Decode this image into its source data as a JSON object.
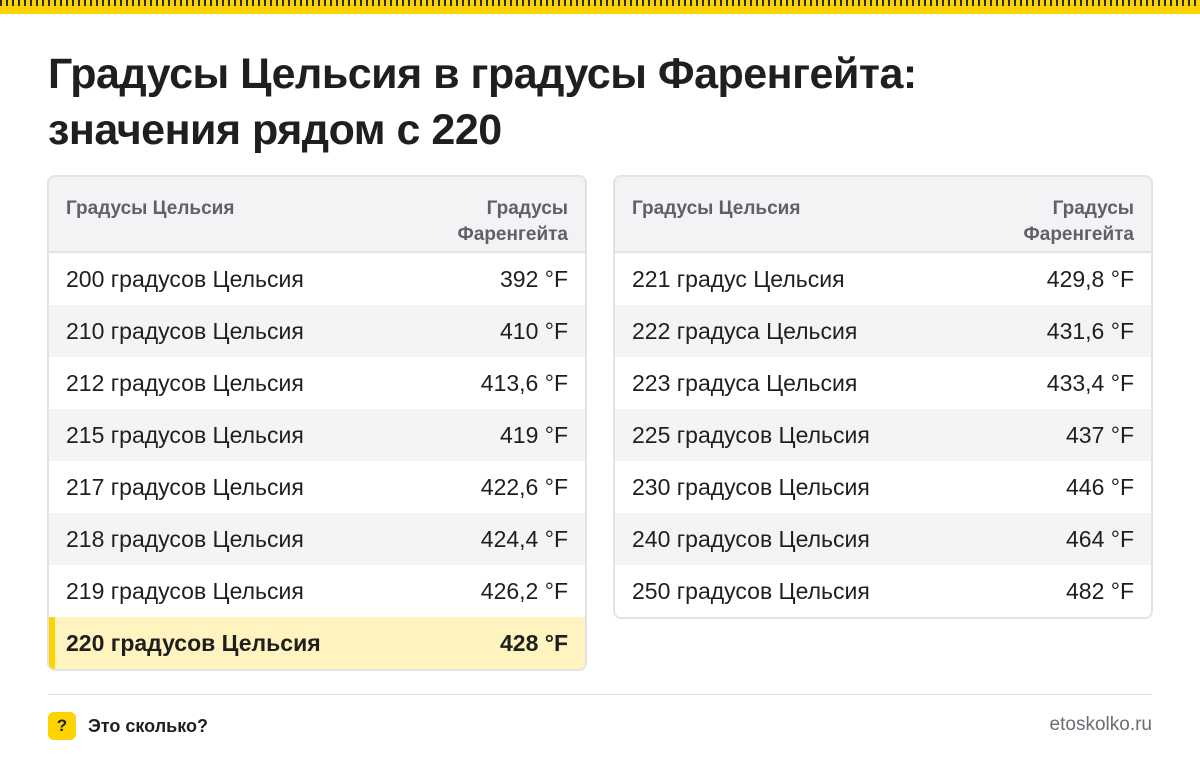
{
  "title": {
    "line1": "Градусы Цельсия в градусы Фаренгейта:",
    "line2": "значения рядом с 220"
  },
  "tables": {
    "left": {
      "header_celsius": "Градусы Цельсия",
      "header_fahrenheit": "Градусы Фаренгейта",
      "rows": [
        {
          "celsius": "200 градусов Цельсия",
          "fahrenheit": "392 °F"
        },
        {
          "celsius": "210 градусов Цельсия",
          "fahrenheit": "410 °F"
        },
        {
          "celsius": "212 градусов Цельсия",
          "fahrenheit": "413,6 °F"
        },
        {
          "celsius": "215 градусов Цельсия",
          "fahrenheit": "419 °F"
        },
        {
          "celsius": "217 градусов Цельсия",
          "fahrenheit": "422,6 °F"
        },
        {
          "celsius": "218 градусов Цельсия",
          "fahrenheit": "424,4 °F"
        },
        {
          "celsius": "219 градусов Цельсия",
          "fahrenheit": "426,2 °F"
        },
        {
          "celsius": "220 градусов Цельсия",
          "fahrenheit": "428 °F",
          "highlighted": true
        }
      ]
    },
    "right": {
      "header_celsius": "Градусы Цельсия",
      "header_fahrenheit": "Градусы Фаренгейта",
      "rows": [
        {
          "celsius": "221 градус Цельсия",
          "fahrenheit": "429,8 °F"
        },
        {
          "celsius": "222 градуса Цельсия",
          "fahrenheit": "431,6 °F"
        },
        {
          "celsius": "223 градуса Цельсия",
          "fahrenheit": "433,4 °F"
        },
        {
          "celsius": "225 градусов Цельсия",
          "fahrenheit": "437 °F"
        },
        {
          "celsius": "230 градусов Цельсия",
          "fahrenheit": "446 °F"
        },
        {
          "celsius": "240 градусов Цельсия",
          "fahrenheit": "464 °F"
        },
        {
          "celsius": "250 градусов Цельсия",
          "fahrenheit": "482 °F"
        }
      ]
    }
  },
  "footer": {
    "brand_icon": "?",
    "brand_name": "Это сколько?",
    "site": "etoskolko.ru"
  },
  "colors": {
    "accent": "#fdd300",
    "highlight_row": "#fff3bf",
    "text": "#1f1f1f",
    "header_text": "#5f6169"
  }
}
